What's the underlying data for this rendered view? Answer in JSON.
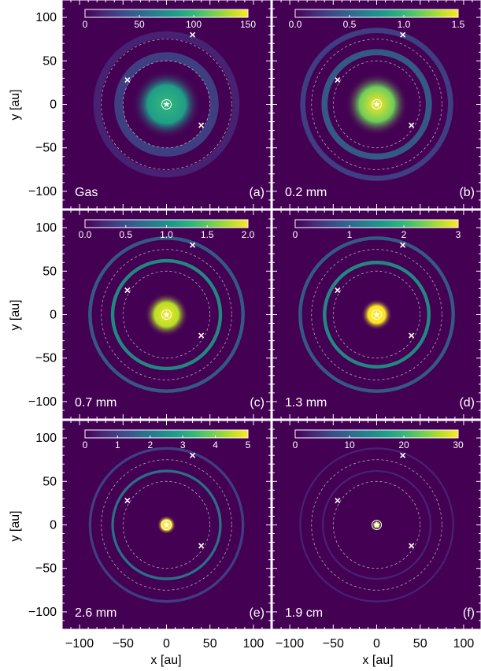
{
  "figure": {
    "xlabel": "x [au]",
    "ylabel": "y [au]",
    "x_ticks": [
      "−100",
      "−50",
      "0",
      "50",
      "100"
    ],
    "y_ticks": [
      "100",
      "50",
      "0",
      "−50",
      "−100"
    ]
  },
  "chart_data": [
    {
      "type": "heatmap",
      "label": "Gas",
      "tag": "(a)",
      "colorbar_ticks": [
        "0",
        "50",
        "100",
        "150"
      ],
      "colorbar_range": [
        0,
        150
      ],
      "rings": [
        {
          "r": 0,
          "w": 22,
          "v": 0.55
        },
        {
          "r": 55,
          "w": 10,
          "v": 0.25
        },
        {
          "r": 80,
          "w": 8,
          "v": 0.15
        }
      ]
    },
    {
      "type": "heatmap",
      "label": "0.2 mm",
      "tag": "(b)",
      "colorbar_ticks": [
        "0.0",
        "0.5",
        "1.0",
        "1.5"
      ],
      "colorbar_range": [
        0,
        1.5
      ],
      "rings": [
        {
          "r": 0,
          "w": 20,
          "v": 0.8
        },
        {
          "r": 60,
          "w": 7,
          "v": 0.35
        },
        {
          "r": 85,
          "w": 6,
          "v": 0.25
        }
      ]
    },
    {
      "type": "heatmap",
      "label": "0.7 mm",
      "tag": "(c)",
      "colorbar_ticks": [
        "0.0",
        "0.5",
        "1.0",
        "1.5",
        "2.0"
      ],
      "colorbar_range": [
        0,
        2.0
      ],
      "rings": [
        {
          "r": 0,
          "w": 14,
          "v": 0.85
        },
        {
          "r": 62,
          "w": 4,
          "v": 0.6
        },
        {
          "r": 88,
          "w": 4,
          "v": 0.35
        }
      ]
    },
    {
      "type": "heatmap",
      "label": "1.3 mm",
      "tag": "(d)",
      "colorbar_ticks": [
        "0",
        "1",
        "2",
        "3"
      ],
      "colorbar_range": [
        0,
        3
      ],
      "rings": [
        {
          "r": 0,
          "w": 10,
          "v": 0.95
        },
        {
          "r": 60,
          "w": 4,
          "v": 0.55
        },
        {
          "r": 88,
          "w": 4,
          "v": 0.3
        }
      ]
    },
    {
      "type": "heatmap",
      "label": "2.6 mm",
      "tag": "(e)",
      "colorbar_ticks": [
        "0",
        "1",
        "2",
        "3",
        "4",
        "5"
      ],
      "colorbar_range": [
        0,
        5
      ],
      "rings": [
        {
          "r": 0,
          "w": 6,
          "v": 0.95
        },
        {
          "r": 62,
          "w": 3,
          "v": 0.4
        },
        {
          "r": 88,
          "w": 3,
          "v": 0.2
        }
      ]
    },
    {
      "type": "heatmap",
      "label": "1.9 cm",
      "tag": "(f)",
      "colorbar_ticks": [
        "0",
        "10",
        "20",
        "30"
      ],
      "colorbar_range": [
        0,
        30
      ],
      "rings": [
        {
          "r": 0,
          "w": 3,
          "v": 0.9
        },
        {
          "r": 62,
          "w": 2,
          "v": 0.12
        },
        {
          "r": 88,
          "w": 2,
          "v": 0.06
        }
      ]
    }
  ],
  "colors": {
    "background": "#440154",
    "viridis": [
      "#440154",
      "#482878",
      "#3e4989",
      "#31688e",
      "#26828e",
      "#1f9e89",
      "#35b779",
      "#6ece58",
      "#b5de2b",
      "#fde725"
    ],
    "marker": "#ffffff",
    "dashed_circle": "#cfcfcf"
  }
}
